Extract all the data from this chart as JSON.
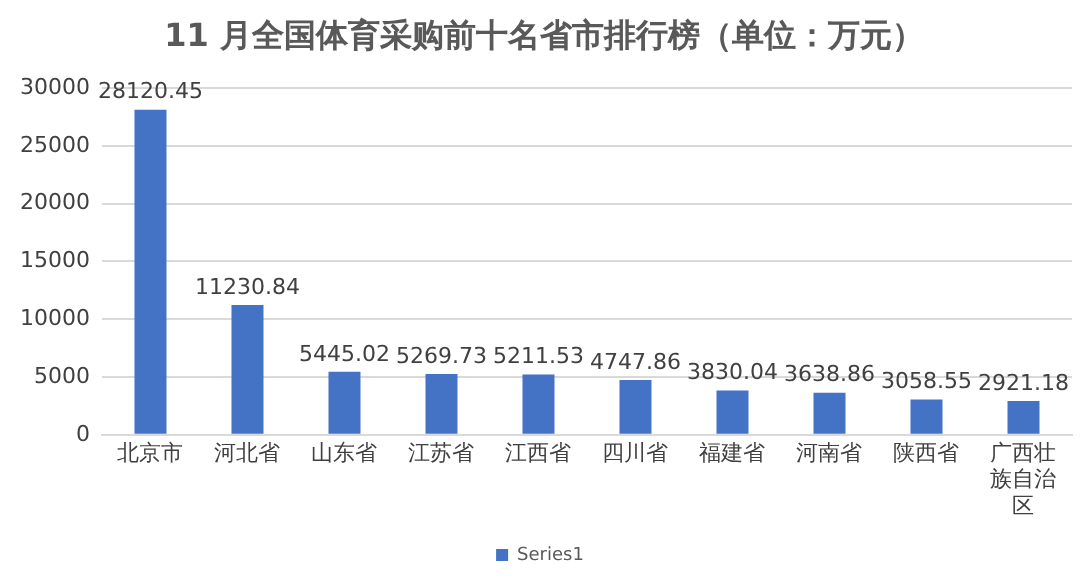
{
  "chart_data": {
    "type": "bar",
    "title": "11 月全国体育采购前十名省市排行榜（单位：万元）",
    "categories": [
      "北京市",
      "河北省",
      "山东省",
      "江苏省",
      "江西省",
      "四川省",
      "福建省",
      "河南省",
      "陕西省",
      "广西壮族自治区"
    ],
    "series": [
      {
        "name": "Series1",
        "color": "#4472c4",
        "values": [
          28120.45,
          11230.84,
          5445.02,
          5269.73,
          5211.53,
          4747.86,
          3830.04,
          3638.86,
          3058.55,
          2921.18
        ]
      }
    ],
    "ylim": [
      0,
      30000
    ],
    "yticks": [
      0,
      5000,
      10000,
      15000,
      20000,
      25000,
      30000
    ],
    "grid": "y",
    "data_labels": true,
    "legend": "bottom"
  }
}
